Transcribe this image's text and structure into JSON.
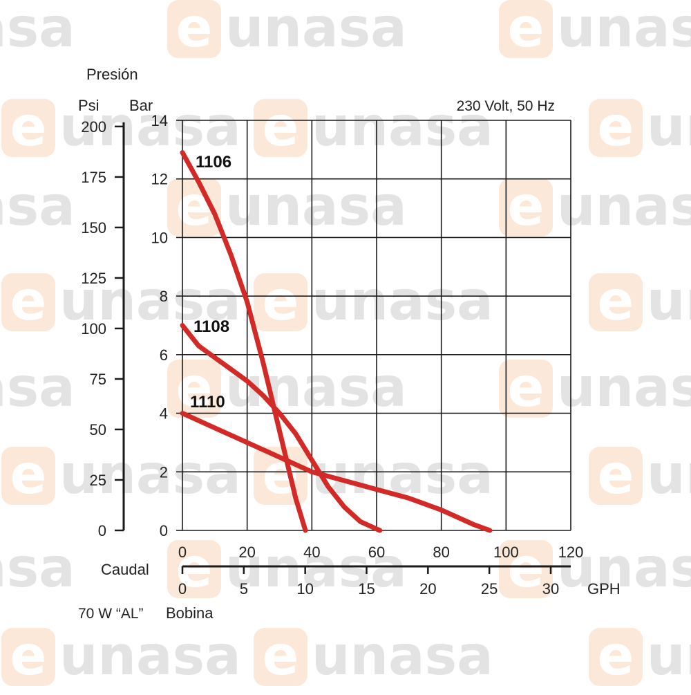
{
  "watermark": {
    "prefix": "e",
    "rest": "unasa",
    "text_color": "#e3e3e3",
    "badge_color": "#fbe8d8"
  },
  "chart_data": {
    "type": "line",
    "title": "Presión",
    "note": "230 Volt, 50 Hz",
    "units": {
      "psi": "Psi",
      "bar": "Bar"
    },
    "y_bar_ticks": [
      0,
      2,
      4,
      6,
      8,
      10,
      12,
      14
    ],
    "y_psi_ticks": [
      0,
      25,
      50,
      75,
      100,
      125,
      150,
      175,
      200
    ],
    "ylim_bar": [
      0,
      14
    ],
    "x_lph_ticks": [
      0,
      20,
      40,
      60,
      80,
      100,
      120
    ],
    "xlim_lph": [
      0,
      120
    ],
    "x_gph_ticks": [
      0,
      5,
      10,
      15,
      20,
      25,
      30
    ],
    "x_gph_unit": "GPH",
    "xlabel": "Caudal",
    "coil_left": "70 W “AL”",
    "coil_right": "Bobina",
    "grid": true,
    "line_color": "#d22a26",
    "series": [
      {
        "name": "1106",
        "x": [
          0,
          5,
          10,
          15,
          20,
          25,
          30,
          35,
          38
        ],
        "y": [
          12.9,
          11.9,
          10.8,
          9.4,
          7.8,
          5.7,
          3.4,
          1.1,
          0
        ]
      },
      {
        "name": "1108",
        "x": [
          0,
          5,
          10,
          15,
          20,
          25,
          30,
          35,
          40,
          45,
          50,
          55,
          61
        ],
        "y": [
          7.0,
          6.3,
          5.9,
          5.5,
          5.1,
          4.6,
          4.0,
          3.3,
          2.4,
          1.5,
          0.8,
          0.3,
          0
        ]
      },
      {
        "name": "1110",
        "x": [
          0,
          10,
          20,
          30,
          40,
          50,
          60,
          70,
          80,
          90,
          95
        ],
        "y": [
          4.0,
          3.5,
          3.0,
          2.5,
          2.0,
          1.7,
          1.4,
          1.1,
          0.7,
          0.2,
          0
        ]
      }
    ]
  }
}
